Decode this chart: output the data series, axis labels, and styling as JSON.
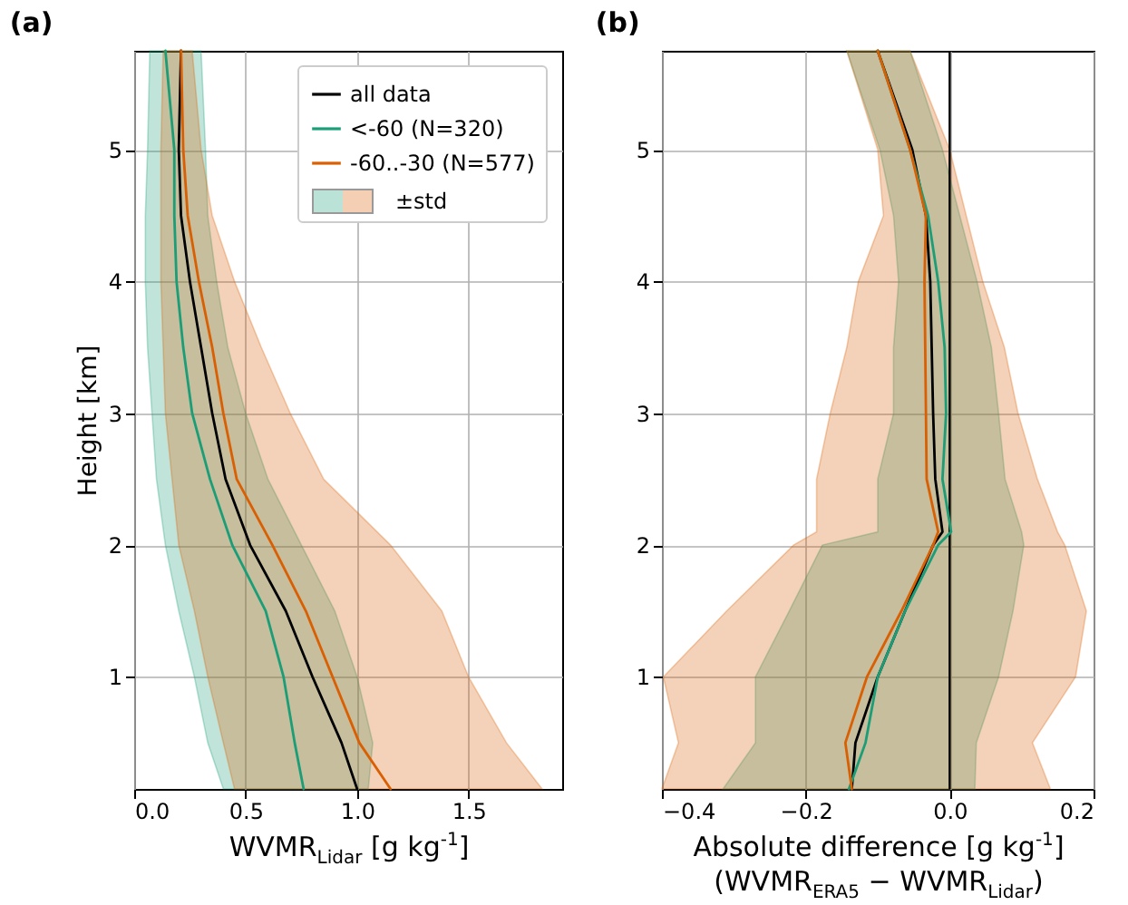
{
  "chart_data": [
    {
      "type": "line",
      "title": "(a)",
      "xlabel": "WVMR$_{Lidar}$ [g kg$^{-1}$]",
      "ylabel": "Height [km]",
      "orientation": "horizontal",
      "x": [
        0.15,
        0.5,
        1,
        1.5,
        2,
        2.5,
        3,
        3.5,
        4,
        4.5,
        5,
        5.75
      ],
      "series": [
        {
          "name": "all data",
          "color": "#000000",
          "values": [
            1.0,
            0.93,
            0.8,
            0.68,
            0.52,
            0.41,
            0.35,
            0.3,
            0.25,
            0.21,
            0.2,
            0.21
          ]
        },
        {
          "name": "<-60 (N=320)",
          "color": "#1b9e77",
          "values": [
            0.76,
            0.72,
            0.67,
            0.59,
            0.44,
            0.34,
            0.26,
            0.22,
            0.19,
            0.18,
            0.18,
            0.14
          ],
          "lower": [
            0.4,
            0.33,
            0.27,
            0.2,
            0.14,
            0.1,
            0.08,
            0.06,
            0.05,
            0.05,
            0.06,
            0.07
          ],
          "upper": [
            1.05,
            1.07,
            1.0,
            0.9,
            0.75,
            0.6,
            0.5,
            0.42,
            0.37,
            0.33,
            0.32,
            0.3
          ]
        },
        {
          "name": "-60..-30 (N=577)",
          "color": "#d95f02",
          "values": [
            1.15,
            1.01,
            0.89,
            0.77,
            0.62,
            0.46,
            0.4,
            0.35,
            0.29,
            0.24,
            0.22,
            0.21
          ],
          "lower": [
            0.45,
            0.4,
            0.33,
            0.27,
            0.2,
            0.17,
            0.14,
            0.13,
            0.12,
            0.12,
            0.12,
            0.13
          ],
          "upper": [
            1.83,
            1.67,
            1.5,
            1.38,
            1.15,
            0.85,
            0.7,
            0.57,
            0.45,
            0.35,
            0.3,
            0.26
          ]
        }
      ],
      "xlim": [
        0,
        1.92
      ],
      "xticks": [
        {
          "value": 0,
          "label": "0.0"
        },
        {
          "value": 0.5,
          "label": "0.5"
        },
        {
          "value": 1,
          "label": "1.0"
        },
        1.5
      ],
      "ylim": [
        0.15,
        5.75
      ],
      "yticks": [
        1,
        2,
        3,
        4,
        5
      ],
      "grid": true,
      "legend": "top right",
      "annotations": [
        "±std"
      ]
    },
    {
      "type": "line",
      "title": "(b)",
      "xlabel": "Absolute difference [g kg$^{-1}$]\n(WVMR$_{ERA5}$ − WVMR$_{Lidar}$)",
      "orientation": "horizontal",
      "x": [
        0.15,
        0.5,
        1,
        1.5,
        2,
        2.1,
        2.5,
        3,
        3.5,
        4,
        4.5,
        5,
        5.75
      ],
      "series": [
        {
          "color": "#000000",
          "values": [
            -0.136,
            -0.131,
            -0.1,
            -0.062,
            -0.023,
            -0.01,
            -0.02,
            -0.023,
            -0.025,
            -0.027,
            -0.033,
            -0.052,
            -0.1
          ]
        },
        {
          "color": "#1b9e77",
          "values": [
            -0.14,
            -0.117,
            -0.1,
            -0.062,
            -0.016,
            0.002,
            -0.01,
            -0.005,
            -0.007,
            -0.016,
            -0.03,
            -0.055,
            -0.1
          ],
          "lower": [
            -0.315,
            -0.27,
            -0.27,
            -0.223,
            -0.177,
            -0.1,
            -0.1,
            -0.078,
            -0.078,
            -0.071,
            -0.078,
            -0.097,
            -0.143
          ],
          "upper": [
            0.035,
            0.037,
            0.068,
            0.088,
            0.103,
            0.1,
            0.077,
            0.068,
            0.058,
            0.038,
            0.014,
            -0.01,
            -0.055
          ]
        },
        {
          "color": "#d95f02",
          "values": [
            -0.136,
            -0.145,
            -0.115,
            -0.067,
            -0.023,
            -0.016,
            -0.032,
            -0.033,
            -0.034,
            -0.035,
            -0.033,
            -0.055,
            -0.1
          ],
          "lower": [
            -0.4,
            -0.377,
            -0.398,
            -0.31,
            -0.217,
            -0.185,
            -0.185,
            -0.166,
            -0.143,
            -0.127,
            -0.092,
            -0.1,
            -0.143
          ],
          "upper": [
            0.14,
            0.115,
            0.175,
            0.19,
            0.16,
            0.15,
            0.122,
            0.095,
            0.076,
            0.046,
            0.023,
            0.0,
            -0.055
          ]
        }
      ],
      "xlim": [
        -0.4,
        0.2
      ],
      "xticks": [
        {
          "value": -0.4,
          "label": "−0.4"
        },
        {
          "value": -0.2,
          "label": "−0.2"
        },
        {
          "value": 0,
          "label": "0.0"
        },
        0.2
      ],
      "ylim": [
        0.15,
        5.75
      ],
      "yticks": [
        1,
        2,
        3,
        4,
        5
      ],
      "grid": true,
      "ref_lines": [
        {
          "axis": "x",
          "value": 0,
          "color": "#000000"
        }
      ]
    }
  ]
}
